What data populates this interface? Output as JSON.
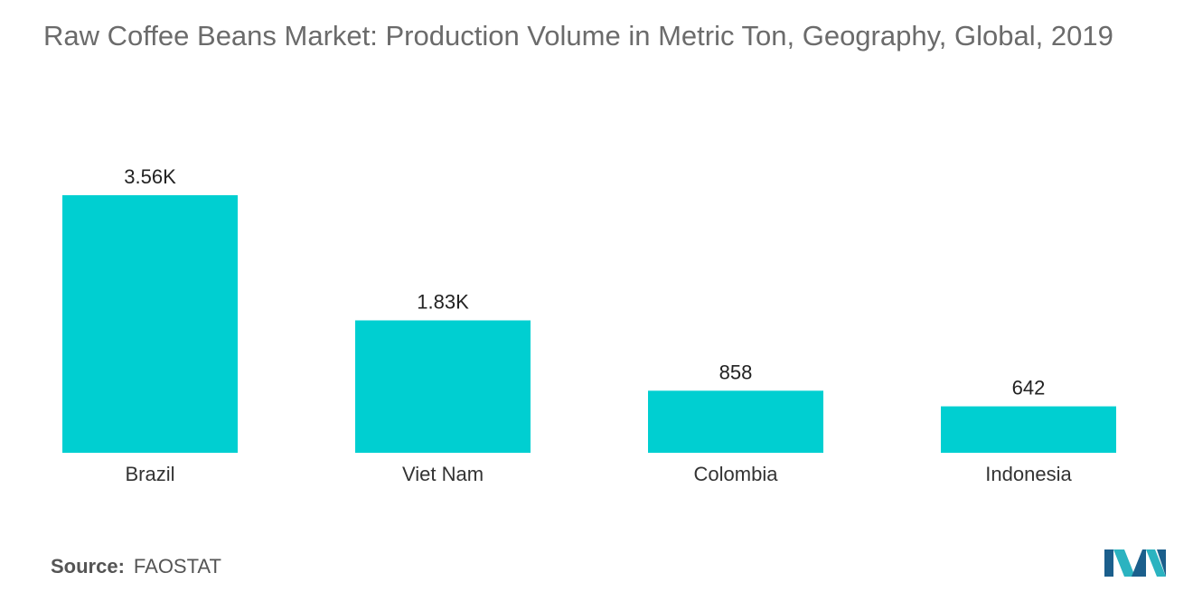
{
  "title": "Raw Coffee Beans Market: Production Volume in Metric Ton, Geography, Global, 2019",
  "source": {
    "label": "Source:",
    "value": "FAOSTAT"
  },
  "logo": {
    "icon": "mordor-intelligence-logo-icon",
    "colors": [
      "#1b5f8c",
      "#2bb3c0"
    ]
  },
  "colors": {
    "bar": "#00cfd1"
  },
  "chart_data": {
    "type": "bar",
    "title": "Raw Coffee Beans Market: Production Volume in Metric Ton, Geography, Global, 2019",
    "categories": [
      "Brazil",
      "Viet Nam",
      "Colombia",
      "Indonesia"
    ],
    "values": [
      3560,
      1830,
      858,
      642
    ],
    "value_labels": [
      "3.56K",
      "1.83K",
      "858",
      "642"
    ],
    "xlabel": "",
    "ylabel": "",
    "ylim": [
      0,
      3560
    ],
    "grid": false,
    "legend": "none"
  }
}
